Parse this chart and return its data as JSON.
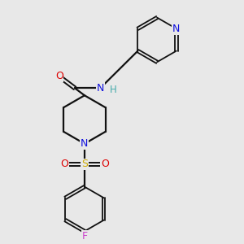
{
  "background_color": "#e8e8e8",
  "figsize": [
    3.0,
    3.0
  ],
  "dpi": 100,
  "line_color": "#111111",
  "line_width": 1.6,
  "colors": {
    "N": "#1010dd",
    "O": "#dd0000",
    "S": "#ccaa00",
    "F": "#cc44cc",
    "H": "#44aaaa",
    "C": "#111111"
  }
}
